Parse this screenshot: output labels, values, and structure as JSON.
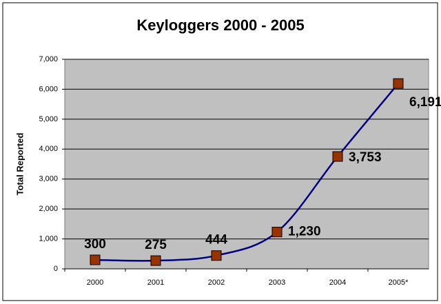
{
  "chart_data": {
    "type": "line",
    "title": "Keyloggers 2000 - 2005",
    "y_label": "Total Reported",
    "categories": [
      "2000",
      "2001",
      "2002",
      "2003",
      "2004",
      "2005*"
    ],
    "series": [
      {
        "name": "Total Reported",
        "color": "#000080",
        "marker_color": "#993300",
        "values": [
          300,
          275,
          444,
          1230,
          3753,
          6191
        ],
        "value_labels": [
          "300",
          "275",
          "444",
          "1,230",
          "3,753",
          "6,191"
        ]
      }
    ],
    "ylim": [
      0,
      7000
    ],
    "yticks": [
      0,
      {
        "value": 1000,
        "label": "1,000"
      },
      {
        "value": 2000,
        "label": "2,000"
      },
      {
        "value": 3000,
        "label": "3,000"
      },
      {
        "value": 4000,
        "label": "4,000"
      },
      {
        "value": 5000,
        "label": "5,000"
      },
      {
        "value": 6000,
        "label": "6,000"
      },
      {
        "value": 7000,
        "label": "7,000"
      }
    ],
    "grid": true,
    "plot_background": "#c0c0c0"
  }
}
